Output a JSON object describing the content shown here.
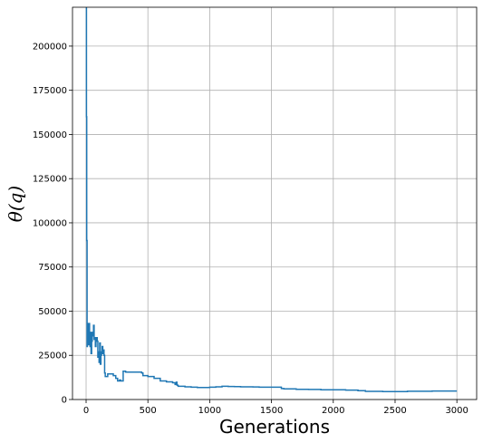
{
  "chart_data": {
    "type": "line",
    "title": "",
    "xlabel": "Generations",
    "ylabel": "θ(q)",
    "xlim": [
      -110,
      3160
    ],
    "ylim": [
      0,
      222000
    ],
    "grid": true,
    "xticks": [
      0,
      500,
      1000,
      1500,
      2000,
      2500,
      3000
    ],
    "yticks": [
      0,
      25000,
      50000,
      75000,
      100000,
      125000,
      150000,
      175000,
      200000
    ],
    "xtick_labels": [
      "0",
      "500",
      "1000",
      "1500",
      "2000",
      "2500",
      "3000"
    ],
    "ytick_labels": [
      "0",
      "25000",
      "50000",
      "75000",
      "100000",
      "125000",
      "150000",
      "175000",
      "200000"
    ],
    "series": [
      {
        "name": "theta",
        "color": "#1f77b4",
        "x": [
          0,
          3,
          5,
          8,
          10,
          15,
          20,
          25,
          28,
          32,
          36,
          40,
          45,
          50,
          55,
          60,
          65,
          70,
          75,
          80,
          85,
          90,
          95,
          100,
          105,
          110,
          115,
          120,
          125,
          130,
          135,
          140,
          145,
          150,
          155,
          160,
          175,
          200,
          220,
          240,
          255,
          270,
          280,
          300,
          320,
          350,
          380,
          400,
          420,
          450,
          460,
          500,
          550,
          600,
          650,
          700,
          720,
          730,
          735,
          740,
          745,
          750,
          800,
          850,
          900,
          950,
          1000,
          1050,
          1100,
          1150,
          1200,
          1250,
          1300,
          1350,
          1400,
          1450,
          1500,
          1550,
          1580,
          1600,
          1700,
          1800,
          1900,
          2000,
          2050,
          2100,
          2200,
          2260,
          2400,
          2600,
          2800,
          3000
        ],
        "y": [
          222000,
          160000,
          90000,
          30000,
          43000,
          40000,
          31000,
          43000,
          35000,
          30000,
          38000,
          26000,
          33000,
          38000,
          36000,
          42000,
          34000,
          35000,
          30000,
          33000,
          35000,
          33000,
          24000,
          27000,
          21000,
          32000,
          20000,
          25000,
          27000,
          30000,
          26000,
          28000,
          25000,
          15000,
          13000,
          13000,
          14500,
          14500,
          13500,
          12000,
          10500,
          11000,
          10500,
          16000,
          15500,
          15500,
          15500,
          15500,
          15500,
          15000,
          13500,
          13000,
          12000,
          10500,
          10000,
          9500,
          8500,
          9800,
          8200,
          8000,
          7500,
          7500,
          7200,
          7000,
          6800,
          6800,
          7000,
          7200,
          7500,
          7400,
          7300,
          7200,
          7200,
          7100,
          7000,
          7000,
          7000,
          7000,
          6200,
          6000,
          5800,
          5700,
          5500,
          5500,
          5500,
          5300,
          5000,
          4600,
          4500,
          4700,
          4800,
          4800
        ]
      }
    ]
  }
}
